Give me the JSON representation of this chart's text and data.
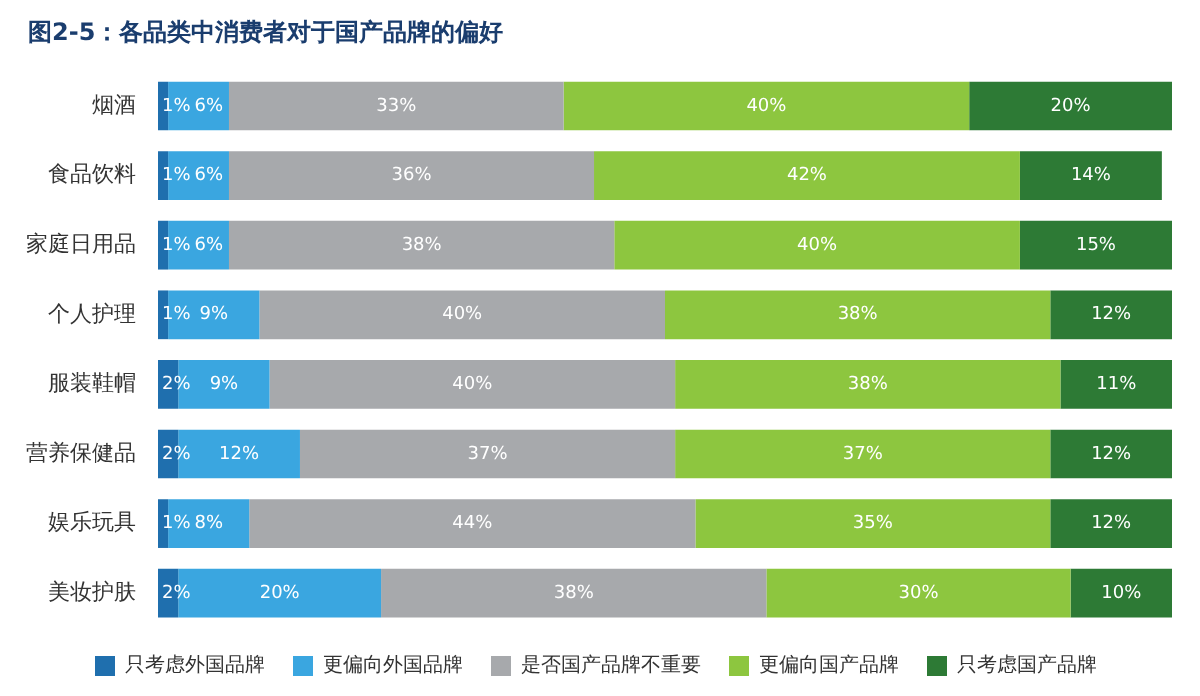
{
  "chart_data": {
    "type": "bar",
    "orientation": "horizontal",
    "stacked": true,
    "title": "图2-5：各品类中消费者对于国产品牌的偏好",
    "categories": [
      "烟酒",
      "食品饮料",
      "家庭日用品",
      "个人护理",
      "服装鞋帽",
      "营养保健品",
      "娱乐玩具",
      "美妆护肤"
    ],
    "xlim": [
      0,
      100
    ],
    "tick_labels": "y",
    "grid": false,
    "legend": "bottom",
    "series": [
      {
        "name": "只考虑外国品牌",
        "color": "#1f6fae",
        "values": [
          1,
          1,
          1,
          1,
          2,
          2,
          1,
          2
        ],
        "value_labels": [
          "1%",
          "1%",
          "1%",
          "1%",
          "2%",
          "2%",
          "1%",
          "2%"
        ]
      },
      {
        "name": "更偏向外国品牌",
        "color": "#3aa6e0",
        "values": [
          6,
          6,
          6,
          9,
          9,
          12,
          8,
          20
        ],
        "value_labels": [
          "6%",
          "6%",
          "6%",
          "9%",
          "9%",
          "12%",
          "8%",
          "20%"
        ]
      },
      {
        "name": "是否国产品牌不重要",
        "color": "#a7a9ac",
        "values": [
          33,
          36,
          38,
          40,
          40,
          37,
          44,
          38
        ],
        "value_labels": [
          "33%",
          "36%",
          "38%",
          "40%",
          "40%",
          "37%",
          "44%",
          "38%"
        ]
      },
      {
        "name": "更偏向国产品牌",
        "color": "#8dc63f",
        "values": [
          40,
          42,
          40,
          38,
          38,
          37,
          35,
          30
        ],
        "value_labels": [
          "40%",
          "42%",
          "40%",
          "38%",
          "38%",
          "37%",
          "35%",
          "30%"
        ]
      },
      {
        "name": "只考虑国产品牌",
        "color": "#2d7a35",
        "values": [
          20,
          14,
          15,
          12,
          11,
          12,
          12,
          10
        ],
        "value_labels": [
          "20%",
          "14%",
          "15%",
          "12%",
          "11%",
          "12%",
          "12%",
          "10%"
        ]
      }
    ]
  }
}
